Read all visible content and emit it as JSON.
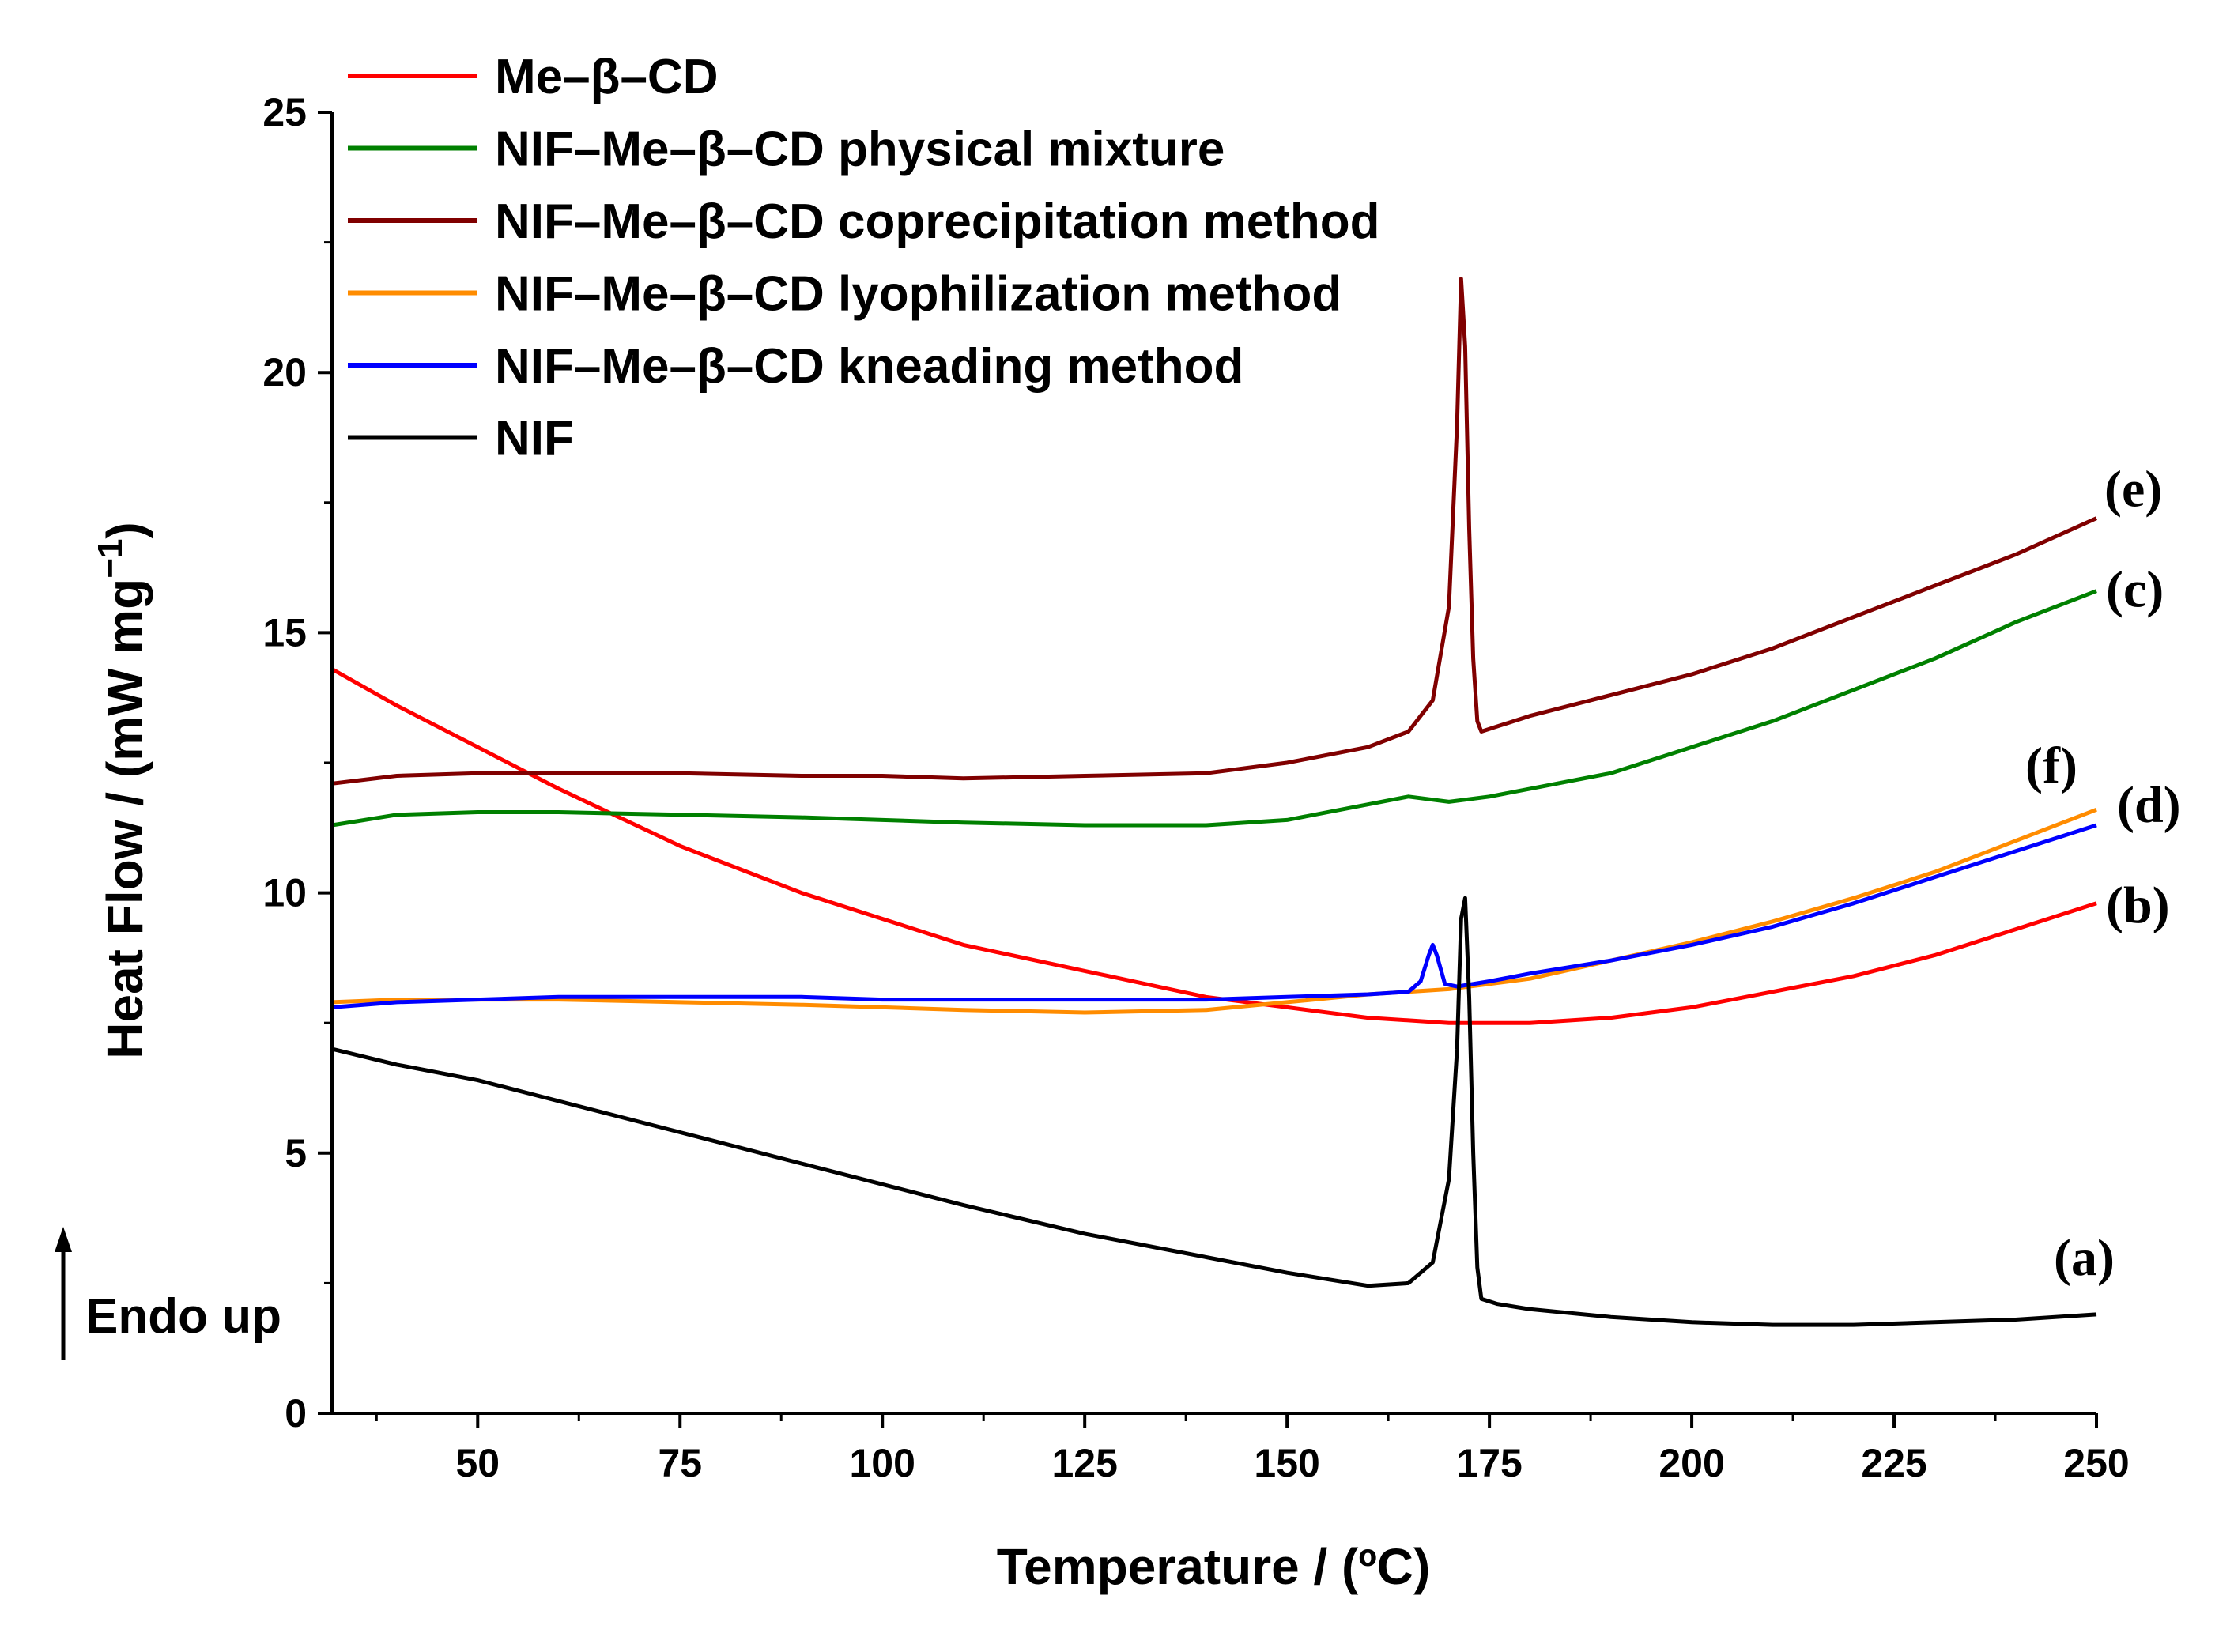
{
  "chart_data": {
    "type": "line",
    "title": "",
    "xlabel": "Temperature / (ºC)",
    "ylabel": "Heat Flow / (mW mg",
    "ylabel_sup": "−1",
    "ylabel_close": ")",
    "xlim": [
      32,
      250
    ],
    "ylim": [
      0,
      25
    ],
    "xticks": [
      50,
      75,
      100,
      125,
      150,
      175,
      200,
      225,
      250
    ],
    "yticks": [
      0,
      5,
      10,
      15,
      20,
      25
    ],
    "grid": false,
    "legend_position": "top-left",
    "annotation": "Endo up",
    "series": [
      {
        "name": "Me–β–CD",
        "color": "#ff0000",
        "curve_label": "(b)",
        "x": [
          32,
          40,
          50,
          60,
          75,
          90,
          100,
          110,
          125,
          140,
          150,
          160,
          170,
          180,
          190,
          200,
          210,
          220,
          230,
          240,
          250
        ],
        "y": [
          14.3,
          13.6,
          12.8,
          12.0,
          10.9,
          10.0,
          9.5,
          9.0,
          8.5,
          8.0,
          7.8,
          7.6,
          7.5,
          7.5,
          7.6,
          7.8,
          8.1,
          8.4,
          8.8,
          9.3,
          9.8
        ]
      },
      {
        "name": "NIF–Me–β–CD physical mixture",
        "color": "#008000",
        "curve_label": "(c)",
        "x": [
          32,
          40,
          50,
          60,
          75,
          90,
          100,
          110,
          125,
          140,
          150,
          160,
          165,
          170,
          175,
          180,
          190,
          200,
          210,
          220,
          230,
          240,
          250
        ],
        "y": [
          11.3,
          11.5,
          11.55,
          11.55,
          11.5,
          11.45,
          11.4,
          11.35,
          11.3,
          11.3,
          11.4,
          11.7,
          11.85,
          11.75,
          11.85,
          12.0,
          12.3,
          12.8,
          13.3,
          13.9,
          14.5,
          15.2,
          15.8
        ]
      },
      {
        "name": "NIF–Me–β–CD coprecipitation method",
        "color": "#800000",
        "curve_label": "(e)",
        "x": [
          32,
          40,
          50,
          60,
          75,
          90,
          100,
          110,
          125,
          140,
          150,
          160,
          165,
          168,
          170,
          171,
          171.5,
          172,
          172.5,
          173,
          173.5,
          174,
          176,
          180,
          190,
          200,
          210,
          220,
          230,
          240,
          250
        ],
        "y": [
          12.1,
          12.25,
          12.3,
          12.3,
          12.3,
          12.25,
          12.25,
          12.2,
          12.25,
          12.3,
          12.5,
          12.8,
          13.1,
          13.7,
          15.5,
          19.0,
          21.8,
          20.5,
          17.0,
          14.5,
          13.3,
          13.1,
          13.2,
          13.4,
          13.8,
          14.2,
          14.7,
          15.3,
          15.9,
          16.5,
          17.2
        ]
      },
      {
        "name": "NIF–Me–β–CD lyophilization method",
        "color": "#ff8c00",
        "curve_label": "(f)",
        "x": [
          32,
          40,
          50,
          60,
          75,
          90,
          100,
          110,
          125,
          140,
          150,
          160,
          170,
          180,
          190,
          200,
          210,
          220,
          230,
          240,
          250
        ],
        "y": [
          7.9,
          7.95,
          7.95,
          7.95,
          7.9,
          7.85,
          7.8,
          7.75,
          7.7,
          7.75,
          7.9,
          8.05,
          8.15,
          8.35,
          8.7,
          9.05,
          9.45,
          9.9,
          10.4,
          11.0,
          11.6
        ]
      },
      {
        "name": "NIF–Me–β–CD kneading method",
        "color": "#0000ff",
        "curve_label": "(d)",
        "x": [
          32,
          40,
          50,
          60,
          75,
          90,
          100,
          110,
          125,
          140,
          150,
          160,
          165,
          166.5,
          167.5,
          168,
          168.5,
          169.5,
          171,
          175,
          180,
          190,
          200,
          210,
          220,
          230,
          240,
          250
        ],
        "y": [
          7.8,
          7.9,
          7.95,
          8.0,
          8.0,
          8.0,
          7.95,
          7.95,
          7.95,
          7.95,
          8.0,
          8.05,
          8.1,
          8.3,
          8.8,
          9.0,
          8.8,
          8.25,
          8.2,
          8.3,
          8.45,
          8.7,
          9.0,
          9.35,
          9.8,
          10.3,
          10.8,
          11.3
        ]
      },
      {
        "name": "NIF",
        "color": "#000000",
        "curve_label": "(a)",
        "x": [
          32,
          40,
          50,
          60,
          75,
          90,
          100,
          110,
          125,
          140,
          150,
          160,
          165,
          168,
          170,
          171,
          171.5,
          172,
          172.5,
          173,
          173.5,
          174,
          176,
          180,
          190,
          200,
          210,
          220,
          230,
          240,
          250
        ],
        "y": [
          7.0,
          6.7,
          6.4,
          6.0,
          5.4,
          4.8,
          4.4,
          4.0,
          3.45,
          3.0,
          2.7,
          2.45,
          2.5,
          2.9,
          4.5,
          7.0,
          9.5,
          9.9,
          8.0,
          5.0,
          2.8,
          2.2,
          2.1,
          2.0,
          1.85,
          1.75,
          1.7,
          1.7,
          1.75,
          1.8,
          1.9
        ]
      }
    ]
  }
}
